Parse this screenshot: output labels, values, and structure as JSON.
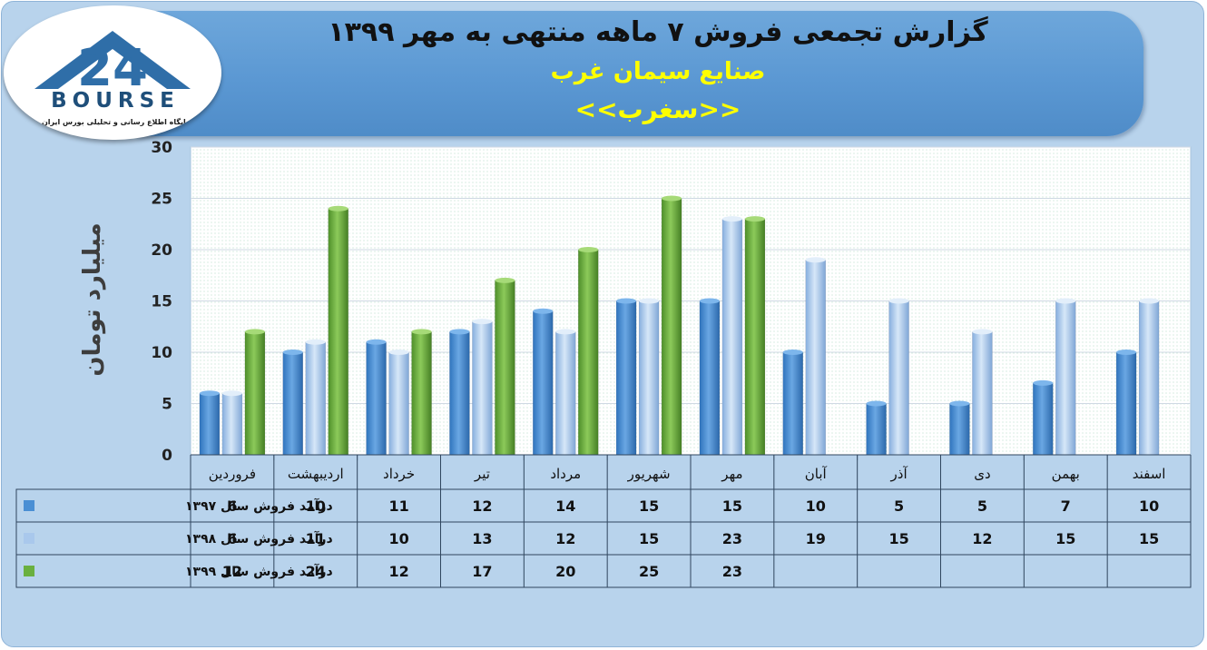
{
  "header": {
    "title": "گزارش تجمعی فروش ۷ ماهه منتهی به مهر ۱۳۹۹",
    "company": "صنایع سیمان غرب",
    "symbol": "<<سغرب>>"
  },
  "logo": {
    "brand": "BOURSE",
    "tagline": "پایگاه اطلاع رسانی و تحلیلی بورس ایران"
  },
  "colors": {
    "series_1397": "#4a8fd4",
    "series_1398": "#a9c8ec",
    "series_1399": "#6ab040"
  },
  "chart_data": {
    "type": "bar",
    "ylabel": "میلیارد تومان",
    "ylim": [
      0,
      30
    ],
    "yticks": [
      0,
      5,
      10,
      15,
      20,
      25,
      30
    ],
    "grid": true,
    "legend": "data table",
    "categories": [
      "فروردین",
      "اردیبهشت",
      "خرداد",
      "تیر",
      "مرداد",
      "شهریور",
      "مهر",
      "آبان",
      "آذر",
      "دی",
      "بهمن",
      "اسفند"
    ],
    "series": [
      {
        "name": "درآمد فروش سال ۱۳۹۷",
        "values": [
          6,
          10,
          11,
          12,
          14,
          15,
          15,
          10,
          5,
          5,
          7,
          10
        ]
      },
      {
        "name": "درآمد فروش سال ۱۳۹۸",
        "values": [
          6,
          11,
          10,
          13,
          12,
          15,
          23,
          19,
          15,
          12,
          15,
          15
        ]
      },
      {
        "name": "درآمد فروش سال ۱۳۹۹",
        "values": [
          12,
          24,
          12,
          17,
          20,
          25,
          23,
          null,
          null,
          null,
          null,
          null
        ]
      }
    ]
  }
}
